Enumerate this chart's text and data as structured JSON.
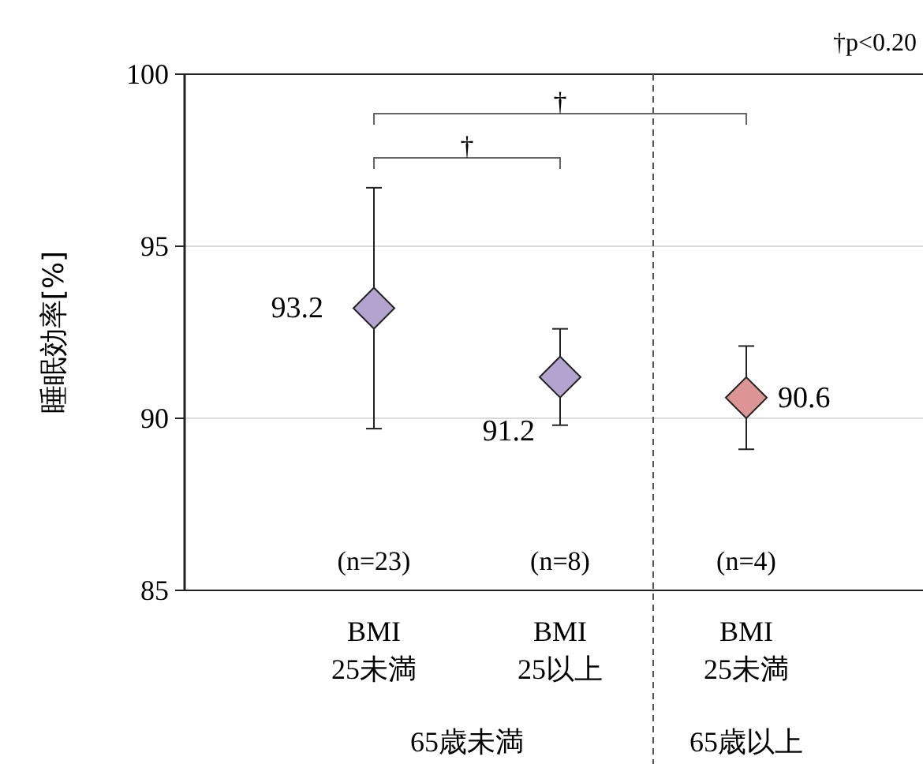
{
  "chart_data": {
    "type": "scatter",
    "ylabel": "睡眠効率[%]",
    "categories": [
      "BMI\n25未満",
      "BMI\n25以上",
      "BMI\n25未満"
    ],
    "values": [
      93.2,
      91.2,
      90.6
    ],
    "errors": [
      3.5,
      1.4,
      1.5
    ],
    "colors": [
      "#b3a3cf",
      "#b3a3cf",
      "#dc9594"
    ],
    "ylim": [
      85,
      100
    ],
    "yticks": [
      85,
      90,
      95,
      100
    ],
    "grid": "y",
    "marker": "diamond",
    "data_labels": true,
    "annotations": [
      "†p<0.20",
      "†",
      "†",
      "(n=23)",
      "(n=8)",
      "(n=4)",
      "65歳未満",
      "65歳以上"
    ]
  }
}
